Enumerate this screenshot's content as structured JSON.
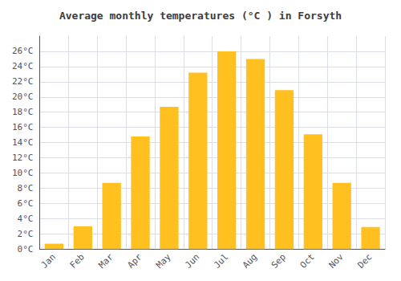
{
  "chart_data": {
    "type": "bar",
    "title": "Average monthly temperatures (°C ) in Forsyth",
    "categories": [
      "Jan",
      "Feb",
      "Mar",
      "Apr",
      "May",
      "Jun",
      "Jul",
      "Aug",
      "Sep",
      "Oct",
      "Nov",
      "Dec"
    ],
    "values": [
      0.7,
      3.0,
      8.7,
      14.8,
      18.7,
      23.2,
      26.0,
      25.0,
      20.9,
      15.1,
      8.7,
      2.9
    ],
    "color": "#FFC020",
    "ylim": [
      0,
      28
    ],
    "yticks": [
      {
        "value": 0,
        "label": "0°C"
      },
      {
        "value": 2,
        "label": "2°C"
      },
      {
        "value": 4,
        "label": "4°C"
      },
      {
        "value": 6,
        "label": "6°C"
      },
      {
        "value": 8,
        "label": "8°C"
      },
      {
        "value": 10,
        "label": "10°C"
      },
      {
        "value": 12,
        "label": "12°C"
      },
      {
        "value": 14,
        "label": "14°C"
      },
      {
        "value": 16,
        "label": "16°C"
      },
      {
        "value": 18,
        "label": "18°C"
      },
      {
        "value": 20,
        "label": "20°C"
      },
      {
        "value": 22,
        "label": "22°C"
      },
      {
        "value": 24,
        "label": "24°C"
      },
      {
        "value": 26,
        "label": "26°C"
      }
    ],
    "grid": true
  }
}
